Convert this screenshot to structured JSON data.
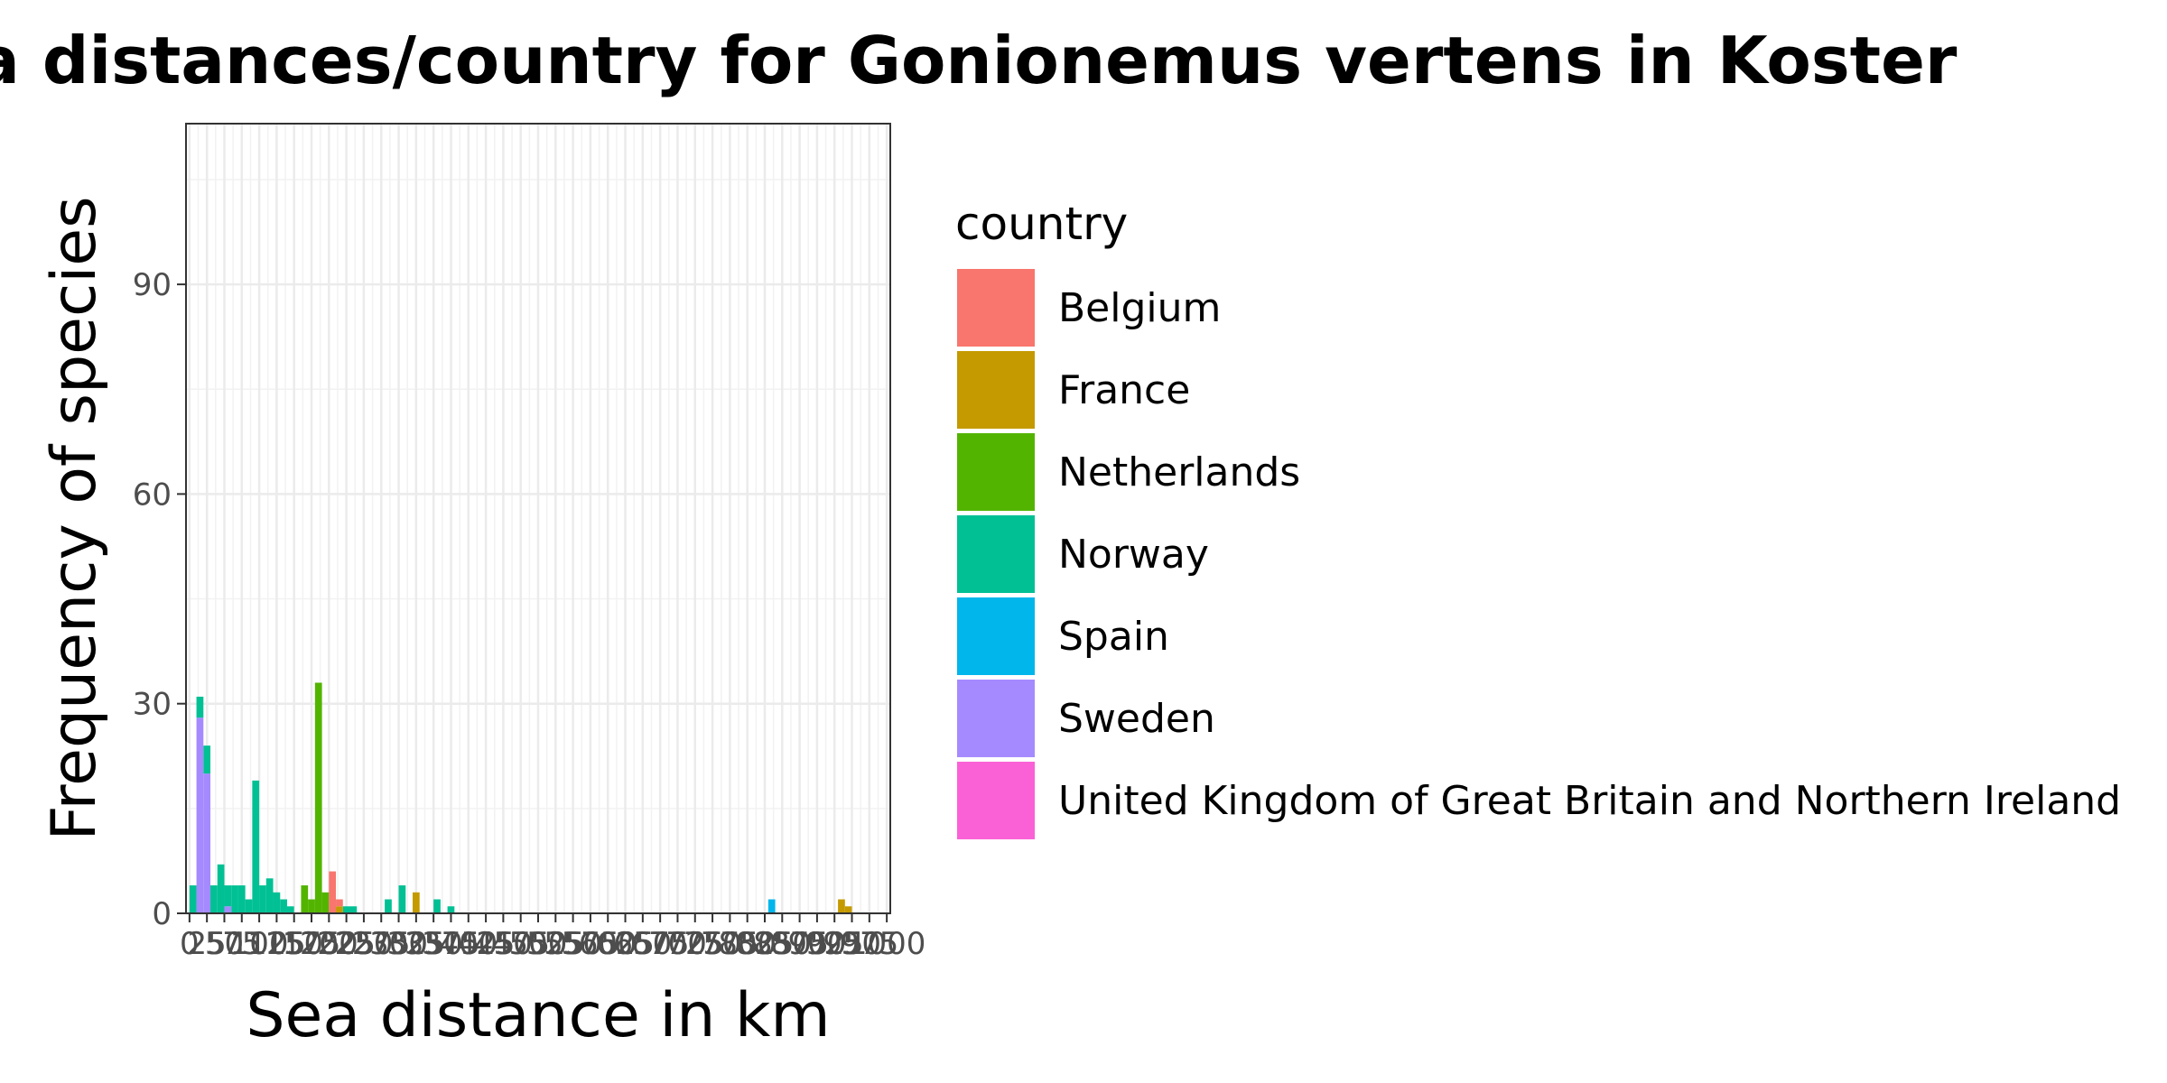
{
  "chart_data": {
    "type": "bar",
    "title": "Sea distances/country for Gonionemus vertens in Koster",
    "xlabel": "Sea distance in km",
    "ylabel": "Frequency of species",
    "xlim": [
      0,
      1000
    ],
    "ylim": [
      0,
      113
    ],
    "x_ticks": [
      0,
      25,
      50,
      75,
      100,
      125,
      150,
      175,
      200,
      225,
      250,
      275,
      300,
      325,
      350,
      375,
      400,
      425,
      450,
      475,
      500,
      525,
      550,
      575,
      600,
      625,
      650,
      675,
      700,
      725,
      750,
      775,
      800,
      825,
      850,
      875,
      900,
      925,
      950,
      975,
      1000
    ],
    "y_ticks": [
      0,
      30,
      60,
      90
    ],
    "grid": true,
    "legend_title": "country",
    "legend_position": "right",
    "bin_width": 10,
    "series": [
      {
        "name": "Belgium",
        "color": "#F8766D",
        "bins": [
          {
            "x": 205,
            "y": 6
          },
          {
            "x": 215,
            "y": 1
          }
        ]
      },
      {
        "name": "France",
        "color": "#C49A00",
        "bins": [
          {
            "x": 215,
            "y": 1
          },
          {
            "x": 325,
            "y": 3
          },
          {
            "x": 935,
            "y": 2
          },
          {
            "x": 945,
            "y": 1
          }
        ]
      },
      {
        "name": "Netherlands",
        "color": "#53B400",
        "bins": [
          {
            "x": 165,
            "y": 4
          },
          {
            "x": 175,
            "y": 2
          },
          {
            "x": 185,
            "y": 33
          },
          {
            "x": 195,
            "y": 3
          }
        ]
      },
      {
        "name": "Norway",
        "color": "#00C094",
        "bins": [
          {
            "x": 5,
            "y": 4
          },
          {
            "x": 15,
            "y": 3
          },
          {
            "x": 25,
            "y": 4
          },
          {
            "x": 35,
            "y": 4
          },
          {
            "x": 45,
            "y": 7
          },
          {
            "x": 55,
            "y": 3
          },
          {
            "x": 65,
            "y": 4
          },
          {
            "x": 75,
            "y": 4
          },
          {
            "x": 85,
            "y": 2
          },
          {
            "x": 95,
            "y": 19
          },
          {
            "x": 105,
            "y": 4
          },
          {
            "x": 115,
            "y": 5
          },
          {
            "x": 125,
            "y": 3
          },
          {
            "x": 135,
            "y": 2
          },
          {
            "x": 145,
            "y": 1
          },
          {
            "x": 225,
            "y": 1
          },
          {
            "x": 235,
            "y": 1
          },
          {
            "x": 285,
            "y": 2
          },
          {
            "x": 305,
            "y": 4
          },
          {
            "x": 355,
            "y": 2
          },
          {
            "x": 375,
            "y": 1
          }
        ]
      },
      {
        "name": "Spain",
        "color": "#00B6EB",
        "bins": [
          {
            "x": 835,
            "y": 2
          }
        ]
      },
      {
        "name": "Sweden",
        "color": "#A58AFF",
        "bins": [
          {
            "x": 15,
            "y": 28
          },
          {
            "x": 25,
            "y": 20
          },
          {
            "x": 55,
            "y": 1
          }
        ]
      },
      {
        "name": "United Kingdom of Great Britain and Northern Ireland",
        "color": "#FB61D7",
        "bins": []
      }
    ]
  }
}
